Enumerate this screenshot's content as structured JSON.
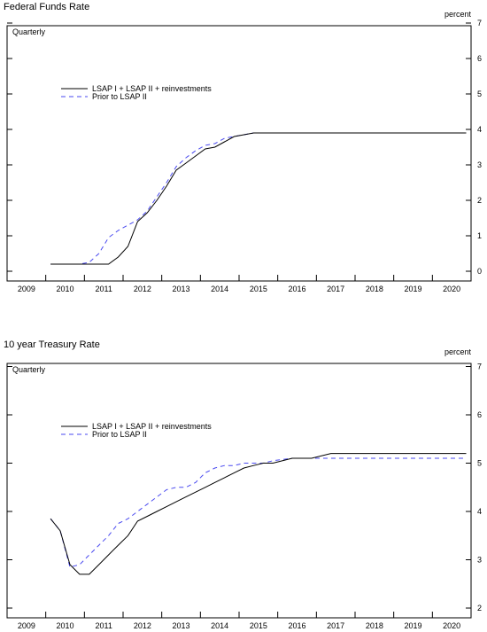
{
  "chart_data": [
    {
      "type": "line",
      "title": "Federal Funds Rate",
      "ylabel": "percent",
      "frequency_label": "Quarterly",
      "ylim": [
        0,
        7
      ],
      "yticks": [
        0,
        1,
        2,
        3,
        4,
        5,
        6,
        7
      ],
      "xlim": [
        2009.0,
        2021.0
      ],
      "xtick_labels": [
        "2009",
        "2010",
        "2011",
        "2012",
        "2013",
        "2014",
        "2015",
        "2016",
        "2017",
        "2018",
        "2019",
        "2020"
      ],
      "legend_position": "upper-left",
      "series": [
        {
          "name": "LSAP I + LSAP II + reinvestments",
          "style": "solid",
          "color": "#000000",
          "x": [
            2010.125,
            2010.375,
            2010.625,
            2010.875,
            2011.125,
            2011.375,
            2011.625,
            2011.875,
            2012.125,
            2012.375,
            2012.625,
            2012.875,
            2013.125,
            2013.375,
            2013.625,
            2013.875,
            2014.125,
            2014.375,
            2014.625,
            2014.875,
            2015.125,
            2015.375,
            2015.625,
            2015.875,
            2016.5,
            2017.5,
            2018.5,
            2019.5,
            2020.5,
            2020.875
          ],
          "y": [
            0.2,
            0.2,
            0.2,
            0.2,
            0.2,
            0.2,
            0.2,
            0.4,
            0.7,
            1.4,
            1.65,
            2.0,
            2.4,
            2.85,
            3.05,
            3.25,
            3.45,
            3.5,
            3.65,
            3.8,
            3.85,
            3.9,
            3.9,
            3.9,
            3.9,
            3.9,
            3.9,
            3.9,
            3.9,
            3.9
          ]
        },
        {
          "name": "Prior to LSAP II",
          "style": "dashed",
          "color": "#4a4af0",
          "x": [
            2010.125,
            2010.375,
            2010.625,
            2010.875,
            2011.125,
            2011.375,
            2011.625,
            2011.875,
            2012.125,
            2012.375,
            2012.625,
            2012.875,
            2013.125,
            2013.375,
            2013.625,
            2013.875,
            2014.125,
            2014.375,
            2014.625,
            2014.875,
            2015.125,
            2015.375,
            2015.625,
            2015.875,
            2016.5,
            2017.5,
            2018.5,
            2019.5,
            2020.5,
            2020.875
          ],
          "y": [
            0.2,
            0.2,
            0.2,
            0.2,
            0.25,
            0.5,
            0.95,
            1.15,
            1.3,
            1.45,
            1.7,
            2.1,
            2.5,
            2.95,
            3.2,
            3.4,
            3.55,
            3.6,
            3.75,
            3.8,
            3.85,
            3.9,
            3.9,
            3.9,
            3.9,
            3.9,
            3.9,
            3.9,
            3.9,
            3.9
          ]
        }
      ]
    },
    {
      "type": "line",
      "title": "10 year Treasury Rate",
      "ylabel": "percent",
      "frequency_label": "Quarterly",
      "ylim": [
        1.8,
        7
      ],
      "yticks": [
        2,
        3,
        4,
        5,
        6,
        7
      ],
      "xlim": [
        2009.0,
        2021.0
      ],
      "xtick_labels": [
        "2009",
        "2010",
        "2011",
        "2012",
        "2013",
        "2014",
        "2015",
        "2016",
        "2017",
        "2018",
        "2019",
        "2020"
      ],
      "legend_position": "upper-left",
      "series": [
        {
          "name": "LSAP I + LSAP II + reinvestments",
          "style": "solid",
          "color": "#000000",
          "x": [
            2010.125,
            2010.375,
            2010.625,
            2010.875,
            2011.125,
            2011.375,
            2011.625,
            2011.875,
            2012.125,
            2012.375,
            2012.625,
            2012.875,
            2013.125,
            2013.375,
            2013.625,
            2013.875,
            2014.125,
            2014.375,
            2014.625,
            2014.875,
            2015.125,
            2015.375,
            2015.625,
            2015.875,
            2016.375,
            2016.875,
            2017.375,
            2018.0,
            2019.0,
            2020.0,
            2020.875
          ],
          "y": [
            3.85,
            3.6,
            2.9,
            2.7,
            2.7,
            2.9,
            3.1,
            3.3,
            3.5,
            3.8,
            3.9,
            4.0,
            4.1,
            4.2,
            4.3,
            4.4,
            4.5,
            4.6,
            4.7,
            4.8,
            4.9,
            4.95,
            5.0,
            5.0,
            5.1,
            5.1,
            5.2,
            5.2,
            5.2,
            5.2,
            5.2
          ]
        },
        {
          "name": "Prior to LSAP II",
          "style": "dashed",
          "color": "#4a4af0",
          "x": [
            2010.125,
            2010.375,
            2010.625,
            2010.875,
            2011.125,
            2011.375,
            2011.625,
            2011.875,
            2012.125,
            2012.375,
            2012.625,
            2012.875,
            2013.125,
            2013.375,
            2013.625,
            2013.875,
            2014.125,
            2014.375,
            2014.625,
            2014.875,
            2015.125,
            2015.375,
            2015.625,
            2015.875,
            2016.375,
            2016.875,
            2017.375,
            2018.0,
            2019.0,
            2020.0,
            2020.875
          ],
          "y": [
            3.85,
            3.6,
            2.85,
            2.9,
            3.1,
            3.3,
            3.5,
            3.75,
            3.85,
            4.0,
            4.15,
            4.3,
            4.45,
            4.5,
            4.5,
            4.6,
            4.8,
            4.9,
            4.95,
            4.95,
            5.0,
            5.0,
            5.0,
            5.05,
            5.1,
            5.1,
            5.1,
            5.1,
            5.1,
            5.1,
            5.1
          ]
        }
      ]
    }
  ]
}
